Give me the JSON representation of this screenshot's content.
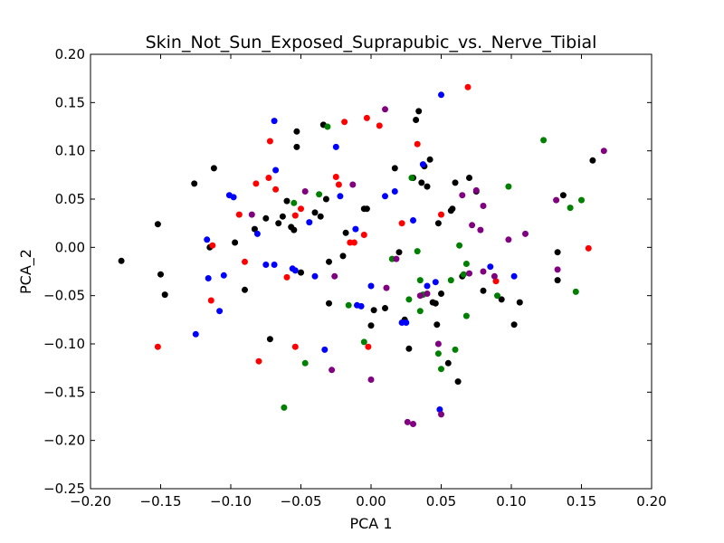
{
  "chart_data": {
    "type": "scatter",
    "title": "Skin_Not_Sun_Exposed_Suprapubic_vs._Nerve_Tibial",
    "xlabel": "PCA 1",
    "ylabel": "PCA_2",
    "xlim": [
      -0.2,
      0.2
    ],
    "ylim": [
      -0.25,
      0.2
    ],
    "xticks": [
      "−0.20",
      "−0.15",
      "−0.10",
      "−0.05",
      "0.00",
      "0.05",
      "0.10",
      "0.15",
      "0.20"
    ],
    "yticks": [
      "−0.25",
      "−0.20",
      "−0.15",
      "−0.10",
      "−0.05",
      "0.00",
      "0.05",
      "0.10",
      "0.15",
      "0.20"
    ],
    "grid": false,
    "legend": "none",
    "series": [
      {
        "color": "#000000",
        "points": [
          [
            -0.178,
            -0.014
          ],
          [
            -0.152,
            0.024
          ],
          [
            -0.15,
            -0.028
          ],
          [
            -0.147,
            -0.049
          ],
          [
            -0.126,
            0.066
          ],
          [
            -0.112,
            0.082
          ],
          [
            -0.115,
            0.0
          ],
          [
            -0.097,
            0.005
          ],
          [
            -0.09,
            -0.044
          ],
          [
            -0.083,
            0.019
          ],
          [
            -0.075,
            0.03
          ],
          [
            -0.072,
            -0.095
          ],
          [
            -0.066,
            0.025
          ],
          [
            -0.063,
            0.032
          ],
          [
            -0.06,
            0.048
          ],
          [
            -0.057,
            0.021
          ],
          [
            -0.055,
            0.018
          ],
          [
            -0.053,
            0.104
          ],
          [
            -0.053,
            0.12
          ],
          [
            -0.05,
            -0.026
          ],
          [
            -0.04,
            0.036
          ],
          [
            -0.036,
            0.032
          ],
          [
            -0.034,
            0.127
          ],
          [
            -0.032,
            0.05
          ],
          [
            -0.03,
            -0.058
          ],
          [
            -0.03,
            -0.015
          ],
          [
            -0.02,
            -0.009
          ],
          [
            -0.018,
            0.015
          ],
          [
            -0.005,
            0.04
          ],
          [
            -0.003,
            0.04
          ],
          [
            0.0,
            -0.081
          ],
          [
            0.002,
            -0.065
          ],
          [
            0.01,
            -0.063
          ],
          [
            0.017,
            0.082
          ],
          [
            0.02,
            -0.005
          ],
          [
            0.024,
            -0.075
          ],
          [
            0.027,
            -0.105
          ],
          [
            0.03,
            0.072
          ],
          [
            0.032,
            0.132
          ],
          [
            0.034,
            0.141
          ],
          [
            0.036,
            0.067
          ],
          [
            0.038,
            0.084
          ],
          [
            0.04,
            0.063
          ],
          [
            0.042,
            0.091
          ],
          [
            0.044,
            -0.057
          ],
          [
            0.046,
            -0.058
          ],
          [
            0.047,
            -0.08
          ],
          [
            0.048,
            0.025
          ],
          [
            0.05,
            -0.048
          ],
          [
            0.055,
            -0.12
          ],
          [
            0.057,
            0.038
          ],
          [
            0.058,
            0.04
          ],
          [
            0.06,
            0.067
          ],
          [
            0.062,
            -0.139
          ],
          [
            0.065,
            -0.03
          ],
          [
            0.07,
            0.072
          ],
          [
            0.075,
            0.058
          ],
          [
            0.08,
            -0.045
          ],
          [
            0.093,
            -0.054
          ],
          [
            0.102,
            -0.08
          ],
          [
            0.106,
            -0.057
          ],
          [
            0.133,
            -0.005
          ],
          [
            0.133,
            -0.034
          ],
          [
            0.137,
            0.054
          ],
          [
            0.158,
            0.09
          ]
        ]
      },
      {
        "color": "#ff0000",
        "points": [
          [
            -0.152,
            -0.103
          ],
          [
            -0.114,
            -0.055
          ],
          [
            -0.113,
            0.002
          ],
          [
            -0.094,
            0.034
          ],
          [
            -0.09,
            -0.015
          ],
          [
            -0.082,
            0.066
          ],
          [
            -0.08,
            -0.118
          ],
          [
            -0.073,
            0.072
          ],
          [
            -0.072,
            0.11
          ],
          [
            -0.068,
            0.06
          ],
          [
            -0.06,
            -0.031
          ],
          [
            -0.054,
            -0.103
          ],
          [
            -0.054,
            0.033
          ],
          [
            -0.05,
            0.04
          ],
          [
            -0.025,
            0.073
          ],
          [
            -0.023,
            0.065
          ],
          [
            -0.019,
            0.13
          ],
          [
            -0.015,
            0.005
          ],
          [
            -0.012,
            0.005
          ],
          [
            -0.005,
            0.013
          ],
          [
            -0.003,
            0.134
          ],
          [
            -0.002,
            -0.103
          ],
          [
            0.006,
            0.126
          ],
          [
            0.022,
            0.025
          ],
          [
            0.033,
            0.107
          ],
          [
            0.05,
            0.034
          ],
          [
            0.069,
            0.166
          ],
          [
            0.089,
            -0.035
          ],
          [
            0.155,
            -0.001
          ]
        ]
      },
      {
        "color": "#0000ff",
        "points": [
          [
            -0.125,
            -0.09
          ],
          [
            -0.117,
            0.008
          ],
          [
            -0.116,
            -0.032
          ],
          [
            -0.108,
            -0.066
          ],
          [
            -0.105,
            -0.029
          ],
          [
            -0.101,
            0.054
          ],
          [
            -0.098,
            0.052
          ],
          [
            -0.081,
            0.014
          ],
          [
            -0.075,
            -0.018
          ],
          [
            -0.069,
            0.131
          ],
          [
            -0.068,
            0.08
          ],
          [
            -0.069,
            -0.018
          ],
          [
            -0.056,
            -0.022
          ],
          [
            -0.054,
            -0.024
          ],
          [
            -0.044,
            0.026
          ],
          [
            -0.04,
            -0.03
          ],
          [
            -0.033,
            -0.106
          ],
          [
            -0.025,
            0.104
          ],
          [
            -0.022,
            0.053
          ],
          [
            -0.011,
            0.019
          ],
          [
            -0.01,
            -0.06
          ],
          [
            -0.007,
            -0.061
          ],
          [
            0.0,
            -0.04
          ],
          [
            0.01,
            0.053
          ],
          [
            0.017,
            0.058
          ],
          [
            0.022,
            -0.078
          ],
          [
            0.025,
            -0.078
          ],
          [
            0.03,
            0.028
          ],
          [
            0.037,
            0.086
          ],
          [
            0.04,
            -0.04
          ],
          [
            0.046,
            -0.036
          ],
          [
            0.049,
            -0.168
          ],
          [
            0.05,
            0.158
          ],
          [
            0.085,
            -0.02
          ],
          [
            0.102,
            -0.03
          ]
        ]
      },
      {
        "color": "#008000",
        "points": [
          [
            -0.062,
            -0.166
          ],
          [
            -0.055,
            0.046
          ],
          [
            -0.047,
            -0.12
          ],
          [
            -0.037,
            0.055
          ],
          [
            -0.031,
            0.125
          ],
          [
            -0.016,
            -0.06
          ],
          [
            -0.005,
            -0.098
          ],
          [
            0.015,
            -0.012
          ],
          [
            0.027,
            -0.054
          ],
          [
            0.029,
            0.072
          ],
          [
            0.033,
            -0.004
          ],
          [
            0.035,
            -0.034
          ],
          [
            0.035,
            -0.066
          ],
          [
            0.037,
            -0.049
          ],
          [
            0.048,
            -0.11
          ],
          [
            0.05,
            -0.126
          ],
          [
            0.057,
            -0.034
          ],
          [
            0.06,
            -0.106
          ],
          [
            0.063,
            0.002
          ],
          [
            0.066,
            -0.028
          ],
          [
            0.068,
            -0.017
          ],
          [
            0.068,
            -0.071
          ],
          [
            0.09,
            -0.05
          ],
          [
            0.098,
            0.063
          ],
          [
            0.123,
            0.111
          ],
          [
            0.142,
            0.041
          ],
          [
            0.146,
            -0.046
          ],
          [
            0.15,
            0.049
          ]
        ]
      },
      {
        "color": "#800080",
        "points": [
          [
            -0.085,
            0.034
          ],
          [
            -0.047,
            0.058
          ],
          [
            -0.028,
            -0.127
          ],
          [
            -0.026,
            -0.03
          ],
          [
            -0.013,
            0.065
          ],
          [
            0.0,
            -0.137
          ],
          [
            0.01,
            0.143
          ],
          [
            0.011,
            -0.042
          ],
          [
            0.018,
            -0.012
          ],
          [
            0.026,
            -0.181
          ],
          [
            0.03,
            -0.183
          ],
          [
            0.035,
            -0.05
          ],
          [
            0.04,
            -0.048
          ],
          [
            0.048,
            -0.1
          ],
          [
            0.05,
            -0.173
          ],
          [
            0.065,
            0.054
          ],
          [
            0.07,
            -0.027
          ],
          [
            0.072,
            0.023
          ],
          [
            0.075,
            0.059
          ],
          [
            0.078,
            0.018
          ],
          [
            0.08,
            -0.025
          ],
          [
            0.08,
            0.043
          ],
          [
            0.088,
            -0.03
          ],
          [
            0.098,
            0.008
          ],
          [
            0.11,
            0.014
          ],
          [
            0.132,
            0.049
          ],
          [
            0.133,
            -0.023
          ],
          [
            0.166,
            0.1
          ]
        ]
      }
    ]
  }
}
